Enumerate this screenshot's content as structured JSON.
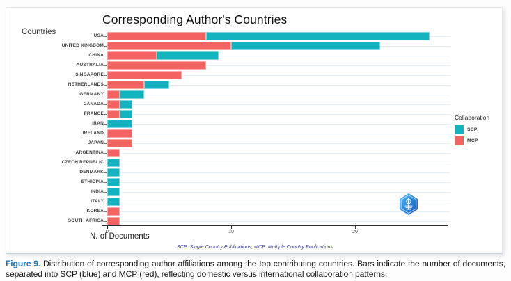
{
  "figure": {
    "title": "Corresponding Author's Countries",
    "y_axis_title": "Countries",
    "x_axis_title": "N. of Documents",
    "footnote": "SCP: Single Country Publications, MCP: Multiple Country Publications",
    "legend": {
      "title": "Collaboration",
      "items": [
        {
          "label": "SCP",
          "color": "#12b3be"
        },
        {
          "label": "MCP",
          "color": "#f26361"
        }
      ]
    },
    "logo": "hexagonal-medical-journal-badge"
  },
  "chart_data": {
    "type": "bar",
    "orientation": "horizontal",
    "stacked": true,
    "title": "Corresponding Author's Countries",
    "xlabel": "N. of Documents",
    "ylabel": "Countries",
    "xlim": [
      0,
      27.7
    ],
    "xticks": [
      0,
      10,
      20
    ],
    "grid": "horizontal",
    "legend_position": "right",
    "categories": [
      "USA",
      "UNITED KINGDOM",
      "CHINA",
      "AUSTRALIA",
      "SINGAPORE",
      "NETHERLANDS",
      "GERMANY",
      "CANADA",
      "FRANCE",
      "IRAN",
      "IRELAND",
      "JAPAN",
      "ARGENTINA",
      "CZECH REPUBLIC",
      "DENMARK",
      "ETHIOPIA",
      "INDIA",
      "ITALY",
      "KOREA",
      "SOUTH AFRICA"
    ],
    "series": [
      {
        "name": "MCP",
        "color": "#f26361",
        "values": [
          8,
          10,
          4,
          8,
          6,
          3,
          1,
          1,
          1,
          0,
          2,
          2,
          1,
          0,
          0,
          0,
          0,
          0,
          1,
          1
        ]
      },
      {
        "name": "SCP",
        "color": "#12b3be",
        "values": [
          18,
          12,
          5,
          0,
          0,
          2,
          2,
          1,
          1,
          2,
          0,
          0,
          0,
          1,
          1,
          1,
          1,
          1,
          0,
          0
        ]
      }
    ],
    "totals": [
      26,
      22,
      9,
      8,
      6,
      5,
      3,
      2,
      2,
      2,
      2,
      2,
      1,
      1,
      1,
      1,
      1,
      1,
      1,
      1
    ],
    "stack_note": "MCP (red) drawn leftmost, SCP (teal) stacked to its right"
  },
  "caption": {
    "label": "Figure 9.",
    "text": "Distribution of corresponding author affiliations among the top contributing countries. Bars indicate the number of documents, separated into SCP (blue) and MCP (red), reflecting domestic versus international collaboration patterns."
  }
}
